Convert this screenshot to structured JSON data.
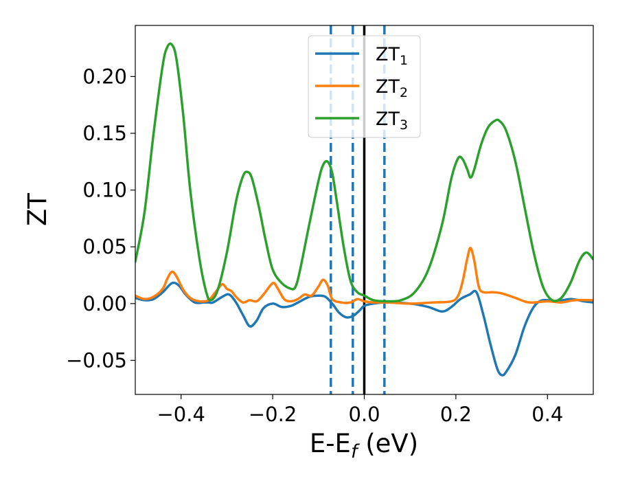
{
  "chart_data": {
    "type": "line",
    "xlabel": "E-E",
    "xlabel_subscript": "f",
    "xlabel_unit": " (eV)",
    "ylabel": "ZT",
    "xlim": [
      -0.5,
      0.5
    ],
    "ylim": [
      -0.08,
      0.245
    ],
    "x_ticks": [
      -0.4,
      -0.2,
      0.0,
      0.2,
      0.4
    ],
    "x_tick_labels": [
      "−0.4",
      "−0.2",
      "0.0",
      "0.2",
      "0.4"
    ],
    "y_ticks": [
      -0.05,
      0.0,
      0.05,
      0.1,
      0.15,
      0.2
    ],
    "y_tick_labels": [
      "−0.05",
      "0.00",
      "0.05",
      "0.10",
      "0.15",
      "0.20"
    ],
    "grid": false,
    "legend_position": "top-center",
    "vertical_lines": [
      {
        "x": -0.073,
        "style": "dashed",
        "color": "#1f77b4"
      },
      {
        "x": -0.025,
        "style": "dashed",
        "color": "#1f77b4"
      },
      {
        "x": 0.0,
        "style": "solid",
        "color": "#000000"
      },
      {
        "x": 0.044,
        "style": "dashed",
        "color": "#1f77b4"
      }
    ],
    "series": [
      {
        "name": "ZT",
        "subscript": "1",
        "color": "#1f77b4",
        "points": [
          [
            -0.5,
            0.005
          ],
          [
            -0.48,
            0.003
          ],
          [
            -0.46,
            0.004
          ],
          [
            -0.44,
            0.01
          ],
          [
            -0.42,
            0.018
          ],
          [
            -0.405,
            0.016
          ],
          [
            -0.39,
            0.008
          ],
          [
            -0.37,
            0.001
          ],
          [
            -0.35,
            0.001
          ],
          [
            -0.34,
            0.001
          ],
          [
            -0.33,
            0.001
          ],
          [
            -0.31,
            0.006
          ],
          [
            -0.295,
            0.008
          ],
          [
            -0.28,
            0.001
          ],
          [
            -0.265,
            -0.01
          ],
          [
            -0.25,
            -0.02
          ],
          [
            -0.235,
            -0.015
          ],
          [
            -0.22,
            -0.004
          ],
          [
            -0.2,
            0.0
          ],
          [
            -0.18,
            -0.003
          ],
          [
            -0.16,
            -0.002
          ],
          [
            -0.14,
            0.002
          ],
          [
            -0.12,
            0.006
          ],
          [
            -0.1,
            0.007
          ],
          [
            -0.085,
            0.006
          ],
          [
            -0.07,
            0.0
          ],
          [
            -0.055,
            -0.008
          ],
          [
            -0.04,
            -0.012
          ],
          [
            -0.025,
            -0.011
          ],
          [
            -0.01,
            -0.006
          ],
          [
            0.0,
            -0.002
          ],
          [
            0.02,
            0.0
          ],
          [
            0.05,
            0.001
          ],
          [
            0.1,
            0.0
          ],
          [
            0.14,
            -0.003
          ],
          [
            0.17,
            -0.007
          ],
          [
            0.19,
            -0.003
          ],
          [
            0.21,
            0.004
          ],
          [
            0.23,
            0.008
          ],
          [
            0.245,
            0.01
          ],
          [
            0.26,
            -0.01
          ],
          [
            0.275,
            -0.035
          ],
          [
            0.29,
            -0.057
          ],
          [
            0.3,
            -0.063
          ],
          [
            0.31,
            -0.06
          ],
          [
            0.33,
            -0.045
          ],
          [
            0.35,
            -0.02
          ],
          [
            0.37,
            -0.003
          ],
          [
            0.39,
            0.003
          ],
          [
            0.42,
            0.002
          ],
          [
            0.45,
            0.004
          ],
          [
            0.48,
            0.002
          ],
          [
            0.5,
            0.001
          ]
        ]
      },
      {
        "name": "ZT",
        "subscript": "2",
        "color": "#ff7f0e",
        "points": [
          [
            -0.5,
            0.007
          ],
          [
            -0.48,
            0.004
          ],
          [
            -0.46,
            0.006
          ],
          [
            -0.44,
            0.013
          ],
          [
            -0.43,
            0.022
          ],
          [
            -0.42,
            0.028
          ],
          [
            -0.41,
            0.024
          ],
          [
            -0.395,
            0.012
          ],
          [
            -0.38,
            0.005
          ],
          [
            -0.36,
            0.002
          ],
          [
            -0.34,
            0.003
          ],
          [
            -0.325,
            0.01
          ],
          [
            -0.31,
            0.017
          ],
          [
            -0.3,
            0.013
          ],
          [
            -0.29,
            0.011
          ],
          [
            -0.28,
            0.006
          ],
          [
            -0.265,
            0.001
          ],
          [
            -0.25,
            0.003
          ],
          [
            -0.235,
            0.002
          ],
          [
            -0.22,
            0.008
          ],
          [
            -0.2,
            0.018
          ],
          [
            -0.19,
            0.014
          ],
          [
            -0.175,
            0.004
          ],
          [
            -0.16,
            0.002
          ],
          [
            -0.145,
            0.004
          ],
          [
            -0.13,
            0.008
          ],
          [
            -0.115,
            0.007
          ],
          [
            -0.1,
            0.015
          ],
          [
            -0.09,
            0.021
          ],
          [
            -0.08,
            0.016
          ],
          [
            -0.07,
            0.004
          ],
          [
            -0.05,
            0.001
          ],
          [
            -0.03,
            0.001
          ],
          [
            -0.015,
            0.004
          ],
          [
            0.0,
            0.002
          ],
          [
            0.02,
            0.001
          ],
          [
            0.05,
            0.001
          ],
          [
            0.1,
            0.0
          ],
          [
            0.15,
            0.001
          ],
          [
            0.19,
            0.002
          ],
          [
            0.205,
            0.007
          ],
          [
            0.215,
            0.02
          ],
          [
            0.225,
            0.04
          ],
          [
            0.232,
            0.049
          ],
          [
            0.24,
            0.038
          ],
          [
            0.25,
            0.015
          ],
          [
            0.26,
            0.01
          ],
          [
            0.28,
            0.01
          ],
          [
            0.3,
            0.009
          ],
          [
            0.33,
            0.005
          ],
          [
            0.36,
            0.001
          ],
          [
            0.4,
            0.002
          ],
          [
            0.43,
            0.001
          ],
          [
            0.46,
            0.003
          ],
          [
            0.5,
            0.003
          ]
        ]
      },
      {
        "name": "ZT",
        "subscript": "3",
        "color": "#2ca02c",
        "points": [
          [
            -0.5,
            0.037
          ],
          [
            -0.48,
            0.08
          ],
          [
            -0.46,
            0.15
          ],
          [
            -0.44,
            0.21
          ],
          [
            -0.43,
            0.226
          ],
          [
            -0.42,
            0.228
          ],
          [
            -0.41,
            0.215
          ],
          [
            -0.395,
            0.165
          ],
          [
            -0.38,
            0.1
          ],
          [
            -0.36,
            0.04
          ],
          [
            -0.345,
            0.01
          ],
          [
            -0.335,
            0.003
          ],
          [
            -0.32,
            0.012
          ],
          [
            -0.3,
            0.045
          ],
          [
            -0.28,
            0.09
          ],
          [
            -0.265,
            0.112
          ],
          [
            -0.255,
            0.116
          ],
          [
            -0.245,
            0.11
          ],
          [
            -0.23,
            0.085
          ],
          [
            -0.215,
            0.055
          ],
          [
            -0.2,
            0.03
          ],
          [
            -0.18,
            0.018
          ],
          [
            -0.16,
            0.013
          ],
          [
            -0.15,
            0.015
          ],
          [
            -0.14,
            0.03
          ],
          [
            -0.12,
            0.07
          ],
          [
            -0.1,
            0.108
          ],
          [
            -0.09,
            0.122
          ],
          [
            -0.08,
            0.125
          ],
          [
            -0.07,
            0.115
          ],
          [
            -0.06,
            0.09
          ],
          [
            -0.045,
            0.05
          ],
          [
            -0.03,
            0.02
          ],
          [
            -0.015,
            0.01
          ],
          [
            0.0,
            0.007
          ],
          [
            0.02,
            0.003
          ],
          [
            0.05,
            0.002
          ],
          [
            0.08,
            0.003
          ],
          [
            0.11,
            0.01
          ],
          [
            0.14,
            0.03
          ],
          [
            0.17,
            0.07
          ],
          [
            0.19,
            0.11
          ],
          [
            0.205,
            0.128
          ],
          [
            0.215,
            0.127
          ],
          [
            0.225,
            0.118
          ],
          [
            0.232,
            0.111
          ],
          [
            0.24,
            0.118
          ],
          [
            0.255,
            0.14
          ],
          [
            0.27,
            0.155
          ],
          [
            0.285,
            0.161
          ],
          [
            0.295,
            0.161
          ],
          [
            0.31,
            0.152
          ],
          [
            0.33,
            0.125
          ],
          [
            0.35,
            0.085
          ],
          [
            0.37,
            0.045
          ],
          [
            0.39,
            0.015
          ],
          [
            0.41,
            0.003
          ],
          [
            0.43,
            0.005
          ],
          [
            0.45,
            0.018
          ],
          [
            0.47,
            0.038
          ],
          [
            0.485,
            0.045
          ],
          [
            0.5,
            0.039
          ]
        ]
      }
    ]
  }
}
